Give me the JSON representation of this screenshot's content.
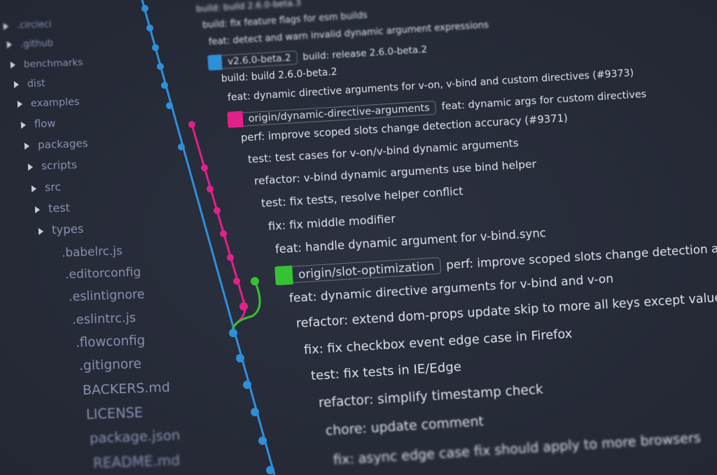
{
  "sidebar": {
    "folders": [
      ".circleci",
      ".github",
      "benchmarks",
      "dist",
      "examples",
      "flow",
      "packages",
      "scripts",
      "src",
      "test",
      "types"
    ],
    "files": [
      ".babelrc.js",
      ".editorconfig",
      ".eslintignore",
      ".eslintrc.js",
      ".flowconfig",
      ".gitignore",
      "BACKERS.md",
      "LICENSE",
      "package.json",
      "README.md"
    ]
  },
  "commits": [
    {
      "message": "build: build 2.6.0-beta.3"
    },
    {
      "message": "build: fix feature flags for esm builds"
    },
    {
      "message": "feat: detect and warn invalid dynamic argument expressions"
    },
    {
      "tag": "v2.6.0-beta.2",
      "color": "#2f8fd8",
      "message": "build: release 2.6.0-beta.2"
    },
    {
      "message": "build: build 2.6.0-beta.2"
    },
    {
      "message": "feat: dynamic directive arguments for v-on, v-bind and custom directives (#9373)"
    },
    {
      "tag": "origin/dynamic-directive-arguments",
      "color": "#e0218a",
      "message": "feat: dynamic args for custom directives"
    },
    {
      "message": "perf: improve scoped slots change detection accuracy (#9371)"
    },
    {
      "message": "test: test cases for v-on/v-bind dynamic arguments"
    },
    {
      "message": "refactor: v-bind dynamic arguments use bind helper"
    },
    {
      "message": "test: fix tests, resolve helper conflict"
    },
    {
      "message": "fix: fix middle modifier"
    },
    {
      "message": "feat: handle dynamic argument for v-bind.sync"
    },
    {
      "tag": "origin/slot-optimization",
      "color": "#35c235",
      "message": "perf: improve scoped slots change detection accuracy"
    },
    {
      "message": "feat: dynamic directive arguments for v-bind and v-on"
    },
    {
      "message": "refactor: extend dom-props update skip to more all keys except value"
    },
    {
      "message": "fix: fix checkbox event edge case in Firefox"
    },
    {
      "message": "test: fix tests in IE/Edge"
    },
    {
      "message": "refactor: simplify timestamp check"
    },
    {
      "message": "chore: update comment"
    },
    {
      "message": "fix: async edge case fix should apply to more browsers"
    }
  ]
}
